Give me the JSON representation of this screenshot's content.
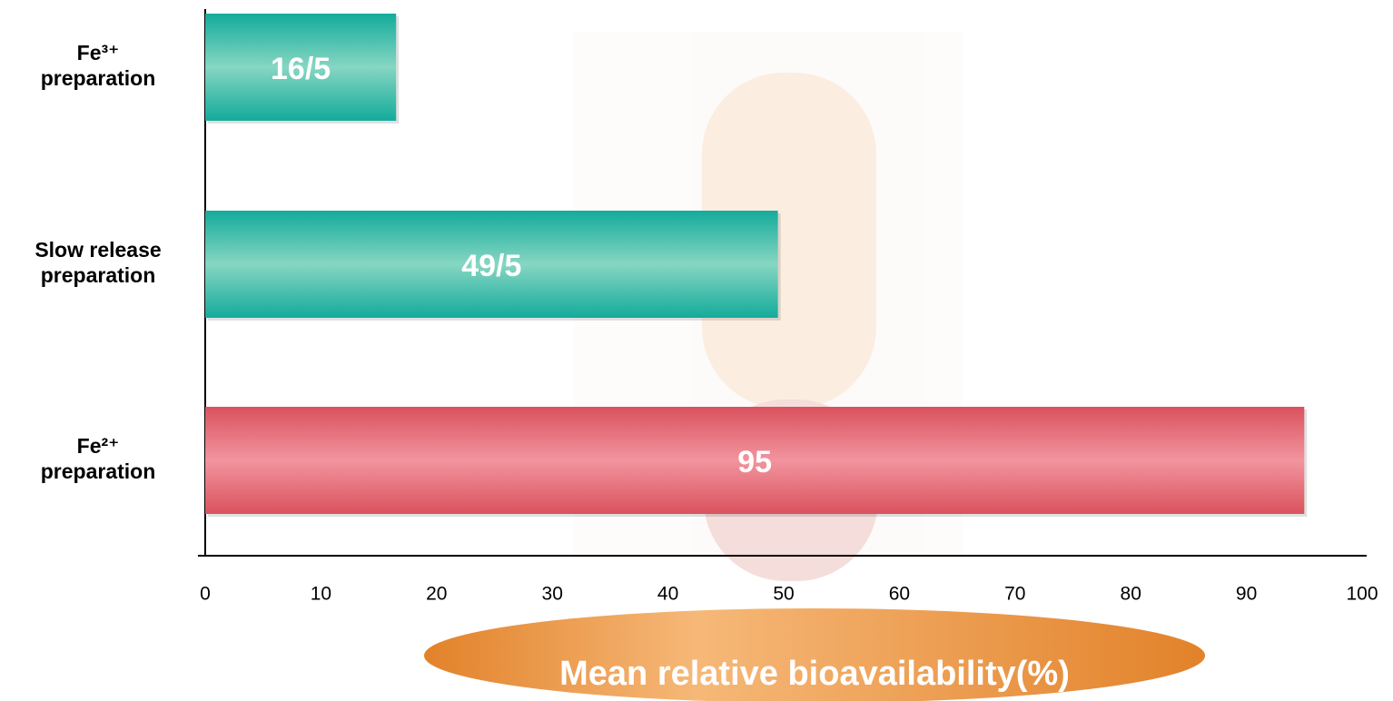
{
  "chart_data": {
    "type": "hbar",
    "x_label": "Mean relative bioavailability(%)",
    "categories": [
      "Fe³⁺\npreparation",
      "Slow release\npreparation",
      "Fe²⁺\npreparation"
    ],
    "values": [
      16.5,
      49.5,
      95
    ],
    "value_labels": [
      "16/5",
      "49/5",
      "95"
    ],
    "colors": [
      "#1aaa9a",
      "#1aaa9a",
      "#d9535f"
    ],
    "xlim": [
      0,
      100
    ],
    "xticks": [
      0,
      10,
      20,
      30,
      40,
      50,
      60,
      70,
      80,
      90,
      100
    ],
    "grid": false
  }
}
